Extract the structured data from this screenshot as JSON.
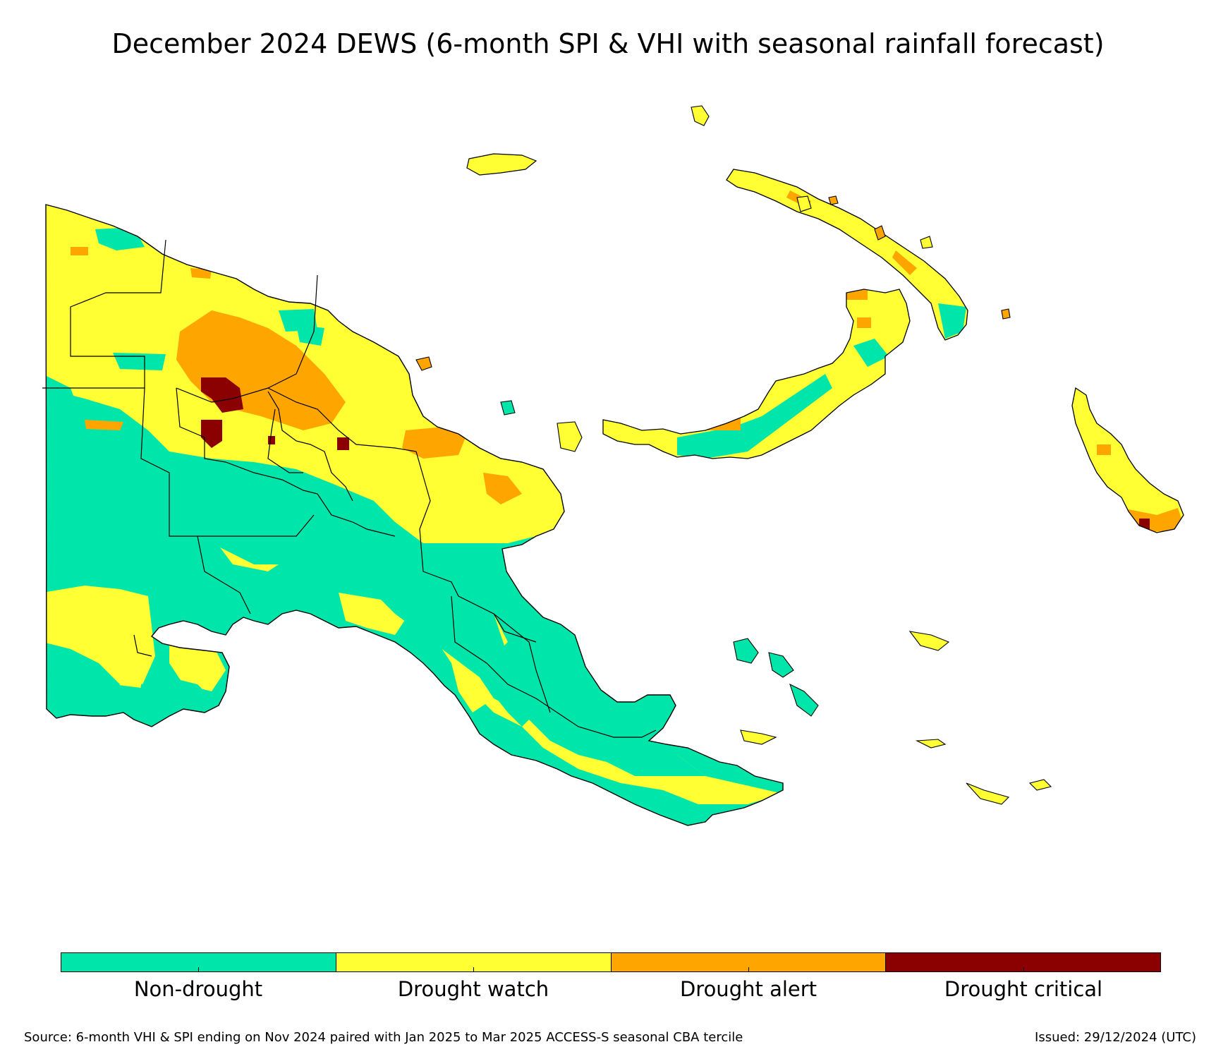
{
  "title": "December 2024 DEWS (6-month SPI & VHI with seasonal rainfall forecast)",
  "legend": {
    "categories": [
      {
        "label": "Non-drought",
        "color": "#00e6aa"
      },
      {
        "label": "Drought watch",
        "color": "#ffff33"
      },
      {
        "label": "Drought alert",
        "color": "#ffa500"
      },
      {
        "label": "Drought critical",
        "color": "#8b0000"
      }
    ]
  },
  "footer": {
    "source": "Source: 6-month VHI & SPI ending on Nov 2024 paired with Jan 2025 to Mar 2025 ACCESS-S seasonal CBA tercile",
    "issued": "Issued: 29/12/2024 (UTC)"
  },
  "map": {
    "region": "Papua New Guinea",
    "colors": {
      "non_drought": "#00e6aa",
      "watch": "#ffff33",
      "alert": "#ffa500",
      "critical": "#8b0000",
      "border": "#000000"
    }
  }
}
